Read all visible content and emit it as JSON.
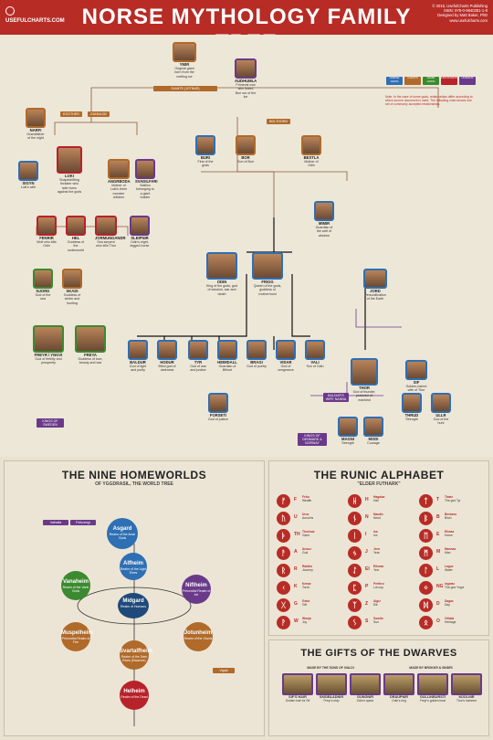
{
  "header": {
    "brand": "USEFULCHARTS.COM",
    "title": "NORSE MYTHOLOGY FAMILY TREE",
    "credits": [
      "© 2015, UsefulCharts Publishing",
      "ISBN: 978-0-9940381-1-8",
      "Designed by Matt Baker, PhD",
      "www.usefulcharts.com"
    ]
  },
  "legend": {
    "categories": [
      {
        "label": "NORSE GODS",
        "color": "#2f6fb3"
      },
      {
        "label": "GIANTS",
        "color": "#b06a2a"
      },
      {
        "label": "VANIR GODS",
        "color": "#3c8a2f"
      },
      {
        "label": "MONSTERS",
        "color": "#b8222a"
      },
      {
        "label": "HUMANS",
        "color": "#6a3a8a"
      },
      {
        "label": "OTHER",
        "color": "#4a8a9a"
      }
    ],
    "note": "Note: In the case of some gods, relationships differ according to which source document is used. The following chart shows one set of commonly accepted relationships."
  },
  "tree": {
    "top_label": "GIANTS (JOTNAR)",
    "nodes": [
      {
        "id": "ymir",
        "name": "YMIR",
        "desc": "Original giant born from the melting ice",
        "cls": "giant"
      },
      {
        "id": "audhumla",
        "name": "AUDHUMLA",
        "desc": "Primeval cow who licked Buri out of the ice",
        "cls": "human"
      },
      {
        "id": "narfi",
        "name": "NARFI",
        "desc": "Grandfather of the night",
        "cls": "giant"
      },
      {
        "id": "loki",
        "name": "LOKI",
        "desc": "Shapeshifting trickster who later turns against the gods",
        "cls": "monster"
      },
      {
        "id": "sigyn",
        "name": "SIGYN",
        "desc": "Loki's wife",
        "cls": "giant"
      },
      {
        "id": "angrboda",
        "name": "ANGRBODA",
        "desc": "Mother of Loki's three monster children",
        "cls": "monster"
      },
      {
        "id": "svadilfari",
        "name": "SVADILFARI",
        "desc": "Stallion belonging to a giant builder",
        "cls": "human"
      },
      {
        "id": "fenrir",
        "name": "FENRIR",
        "desc": "Wolf who kills Odin",
        "cls": "monster"
      },
      {
        "id": "hel",
        "name": "HEL",
        "desc": "Goddess of the underworld",
        "cls": "monster"
      },
      {
        "id": "jormungandr",
        "name": "JORMUNGANDR",
        "desc": "Sea serpent who kills Thor",
        "cls": "monster"
      },
      {
        "id": "sleipnir",
        "name": "SLEIPNIR",
        "desc": "Odin's eight-legged horse",
        "cls": "human"
      },
      {
        "id": "buri",
        "name": "BURI",
        "desc": "First of the gods",
        "cls": "aesir"
      },
      {
        "id": "bor",
        "name": "BOR",
        "desc": "Son of Buri",
        "cls": "giant"
      },
      {
        "id": "bestla",
        "name": "BESTLA",
        "desc": "Mother of Odin",
        "cls": "giant"
      },
      {
        "id": "mimir",
        "name": "MIMIR",
        "desc": "Guardian of the well of wisdom",
        "cls": "aesir"
      },
      {
        "id": "njord",
        "name": "NJORD",
        "desc": "God of the sea",
        "cls": "vanir"
      },
      {
        "id": "skadi",
        "name": "SKADI",
        "desc": "Goddess of winter and hunting",
        "cls": "giant"
      },
      {
        "id": "odin",
        "name": "ODIN",
        "desc": "King of the gods, god of wisdom, war and death",
        "cls": "aesir"
      },
      {
        "id": "frigg",
        "name": "FRIGG",
        "desc": "Queen of the gods, goddess of motherhood",
        "cls": "aesir"
      },
      {
        "id": "jord",
        "name": "JORD",
        "desc": "Personification of the Earth",
        "cls": "aesir"
      },
      {
        "id": "freyr",
        "name": "FREYR / YNGVI",
        "desc": "God of fertility and prosperity",
        "cls": "vanir"
      },
      {
        "id": "freya",
        "name": "FREYA",
        "desc": "Goddess of love, beauty and war",
        "cls": "vanir"
      },
      {
        "id": "baldur",
        "name": "BALDUR",
        "desc": "God of light and purity",
        "cls": "aesir"
      },
      {
        "id": "hodur",
        "name": "HODUR",
        "desc": "Blind god of darkness",
        "cls": "aesir"
      },
      {
        "id": "thor",
        "name": "THOR",
        "desc": "God of thunder, protector of mankind",
        "cls": "aesir"
      },
      {
        "id": "sif",
        "name": "SIF",
        "desc": "Golden-haired wife of Thor",
        "cls": "aesir"
      },
      {
        "id": "tyr",
        "name": "TYR",
        "desc": "God of war and justice",
        "cls": "aesir"
      },
      {
        "id": "heimdall",
        "name": "HEIMDALL",
        "desc": "Guardian of Bifrost",
        "cls": "aesir"
      },
      {
        "id": "bragi",
        "name": "BRAGI",
        "desc": "God of poetry",
        "cls": "aesir"
      },
      {
        "id": "vidar",
        "name": "VIDAR",
        "desc": "God of vengeance",
        "cls": "aesir"
      },
      {
        "id": "vali",
        "name": "VALI",
        "desc": "Son of Odin",
        "cls": "aesir"
      },
      {
        "id": "forseti",
        "name": "FORSETI",
        "desc": "God of justice",
        "cls": "aesir"
      },
      {
        "id": "magni",
        "name": "MAGNI",
        "desc": "Strength",
        "cls": "aesir"
      },
      {
        "id": "modi",
        "name": "MODI",
        "desc": "Courage",
        "cls": "aesir"
      },
      {
        "id": "thrud",
        "name": "THRUD",
        "desc": "Strength",
        "cls": "aesir"
      },
      {
        "id": "ullr",
        "name": "ULLR",
        "desc": "God of the hunt",
        "cls": "aesir"
      }
    ],
    "labels": [
      {
        "text": "EGGTHER",
        "cls": "g"
      },
      {
        "text": "GUNNLOD",
        "cls": "g"
      },
      {
        "text": "BOLTHORN",
        "cls": "g"
      },
      {
        "text": "BALDUR'S WIFE NANNA",
        "cls": "p"
      },
      {
        "text": "KINGS OF SWEDEN",
        "cls": "p"
      },
      {
        "text": "KINGS OF DENMARK & NORWAY",
        "cls": "p"
      }
    ],
    "key": [
      "1. Tuesday = Tyr's Day",
      "2. Wednesday = Odin's Day",
      "3. Thursday = Thor's Day",
      "4. Friday = Frigg's Day"
    ]
  },
  "homeworlds": {
    "title": "THE NINE HOMEWORLDS",
    "subtitle": "OF YGGDRASIL, THE WORLD TREE",
    "worlds": [
      {
        "name": "Asgard",
        "desc": "Realm of the Aesir Gods",
        "color": "#2f6fb3"
      },
      {
        "name": "Alfheim",
        "desc": "Realm of the Light Elves",
        "color": "#2f6fb3"
      },
      {
        "name": "Vanaheim",
        "desc": "Realm of the Vanir Gods",
        "color": "#3c8a2f"
      },
      {
        "name": "Midgard",
        "desc": "Realm of Humans",
        "color": "#1f4a7a"
      },
      {
        "name": "Niflheim",
        "desc": "Primordial Realm of Ice",
        "color": "#6a3a8a"
      },
      {
        "name": "Muspelheim",
        "desc": "Primordial Realm of Fire",
        "color": "#b06a2a"
      },
      {
        "name": "Jotunheim",
        "desc": "Realm of the Giants",
        "color": "#b06a2a"
      },
      {
        "name": "Svartalfheim",
        "desc": "Realm of the Dark Elves (Dwarves)",
        "color": "#b06a2a"
      },
      {
        "name": "Helheim",
        "desc": "Realm of the Dead",
        "color": "#b8222a"
      }
    ],
    "directions": [
      "NORTH",
      "SOUTH",
      "EAST",
      "WEST"
    ],
    "extras": [
      "Valhalla",
      "Folkvangr",
      "Vigrid",
      "Bifrost",
      "Ratatoskr",
      "Nidhogg",
      "Yggdrasil"
    ]
  },
  "runes": {
    "title": "THE RUNIC ALPHABET",
    "subtitle": "\"ELDER FUTHARK\"",
    "items": [
      {
        "glyph": "ᚠ",
        "letter": "F",
        "name": "Fehu",
        "meaning": "Wealth"
      },
      {
        "glyph": "ᚢ",
        "letter": "U",
        "name": "Uruz",
        "meaning": "Aurochs"
      },
      {
        "glyph": "ᚦ",
        "letter": "TH",
        "name": "Thurisaz",
        "meaning": "Giant"
      },
      {
        "glyph": "ᚨ",
        "letter": "A",
        "name": "Ansuz",
        "meaning": "God"
      },
      {
        "glyph": "ᚱ",
        "letter": "R",
        "name": "Raidho",
        "meaning": "Journey"
      },
      {
        "glyph": "ᚲ",
        "letter": "K",
        "name": "Kenaz",
        "meaning": "Torch"
      },
      {
        "glyph": "ᚷ",
        "letter": "G",
        "name": "Gebo",
        "meaning": "Gift"
      },
      {
        "glyph": "ᚹ",
        "letter": "W",
        "name": "Wunjo",
        "meaning": "Joy"
      },
      {
        "glyph": "ᚺ",
        "letter": "H",
        "name": "Hagalaz",
        "meaning": "Hail"
      },
      {
        "glyph": "ᚾ",
        "letter": "N",
        "name": "Naudiz",
        "meaning": "Need"
      },
      {
        "glyph": "ᛁ",
        "letter": "I",
        "name": "Isa",
        "meaning": "Ice"
      },
      {
        "glyph": "ᛃ",
        "letter": "J",
        "name": "Jera",
        "meaning": "Year"
      },
      {
        "glyph": "ᛇ",
        "letter": "EI",
        "name": "Eihwaz",
        "meaning": "Yew"
      },
      {
        "glyph": "ᛈ",
        "letter": "P",
        "name": "Perthro",
        "meaning": "Lot cup"
      },
      {
        "glyph": "ᛉ",
        "letter": "Z",
        "name": "Algiz",
        "meaning": "Elk"
      },
      {
        "glyph": "ᛊ",
        "letter": "S",
        "name": "Sowilo",
        "meaning": "Sun"
      },
      {
        "glyph": "ᛏ",
        "letter": "T",
        "name": "Tiwaz",
        "meaning": "The god Tyr"
      },
      {
        "glyph": "ᛒ",
        "letter": "B",
        "name": "Berkano",
        "meaning": "Birch"
      },
      {
        "glyph": "ᛖ",
        "letter": "E",
        "name": "Ehwaz",
        "meaning": "Horse"
      },
      {
        "glyph": "ᛗ",
        "letter": "M",
        "name": "Mannaz",
        "meaning": "Man"
      },
      {
        "glyph": "ᛚ",
        "letter": "L",
        "name": "Laguz",
        "meaning": "Water"
      },
      {
        "glyph": "ᛜ",
        "letter": "NG",
        "name": "Ingwaz",
        "meaning": "The god Yngvi"
      },
      {
        "glyph": "ᛞ",
        "letter": "D",
        "name": "Dagaz",
        "meaning": "Day"
      },
      {
        "glyph": "ᛟ",
        "letter": "O",
        "name": "Othala",
        "meaning": "Heritage"
      }
    ]
  },
  "dwarves": {
    "title": "THE GIFTS OF THE DWARVES",
    "groups": [
      "MADE BY THE SONS OF IVALDI",
      "MADE BY BROKKR & SINDRI"
    ],
    "gifts": [
      {
        "name": "SIF'S HAIR",
        "desc": "Golden hair for Sif"
      },
      {
        "name": "SKIDBLADNIR",
        "desc": "Freyr's ship"
      },
      {
        "name": "GUNGNIR",
        "desc": "Odin's spear"
      },
      {
        "name": "DRAUPNIR",
        "desc": "Odin's ring"
      },
      {
        "name": "GULLINBURSTI",
        "desc": "Freyr's golden boar"
      },
      {
        "name": "MJOLNIR",
        "desc": "Thor's hammer"
      }
    ]
  }
}
